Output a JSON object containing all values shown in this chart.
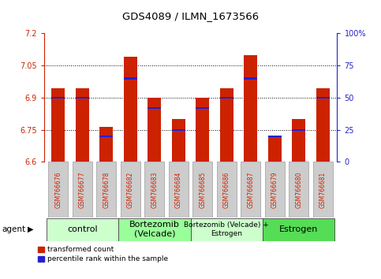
{
  "title": "GDS4089 / ILMN_1673566",
  "samples": [
    "GSM766676",
    "GSM766677",
    "GSM766678",
    "GSM766682",
    "GSM766683",
    "GSM766684",
    "GSM766685",
    "GSM766686",
    "GSM766687",
    "GSM766679",
    "GSM766680",
    "GSM766681"
  ],
  "bar_values": [
    6.945,
    6.945,
    6.765,
    7.09,
    6.9,
    6.8,
    6.9,
    6.945,
    7.1,
    6.72,
    6.8,
    6.945
  ],
  "percentile_values": [
    50,
    50,
    20,
    65,
    42,
    25,
    42,
    50,
    65,
    20,
    25,
    50
  ],
  "ylim": [
    6.6,
    7.2
  ],
  "yticks": [
    6.6,
    6.75,
    6.9,
    7.05,
    7.2
  ],
  "ytick_labels": [
    "6.6",
    "6.75",
    "6.9",
    "7.05",
    "7.2"
  ],
  "right_yticks": [
    0,
    25,
    50,
    75,
    100
  ],
  "right_ytick_labels": [
    "0",
    "25",
    "50",
    "75",
    "100%"
  ],
  "bar_color": "#cc2200",
  "marker_color": "#2222cc",
  "bar_width": 0.55,
  "groups": [
    {
      "label": "control",
      "start": 0,
      "end": 3,
      "color": "#ccffcc",
      "fontsize": 8
    },
    {
      "label": "Bortezomib\n(Velcade)",
      "start": 3,
      "end": 6,
      "color": "#99ff99",
      "fontsize": 8
    },
    {
      "label": "Bortezomib (Velcade) +\nEstrogen",
      "start": 6,
      "end": 9,
      "color": "#ccffcc",
      "fontsize": 6.5
    },
    {
      "label": "Estrogen",
      "start": 9,
      "end": 12,
      "color": "#55dd55",
      "fontsize": 8
    }
  ],
  "group_line_color": "#444444",
  "xlabel_color": "#cc2200",
  "right_ylabel_color": "#2222cc",
  "grid_color": "#000000",
  "background_color": "#ffffff",
  "tick_label_bg": "#cccccc",
  "agent_text": "agent"
}
